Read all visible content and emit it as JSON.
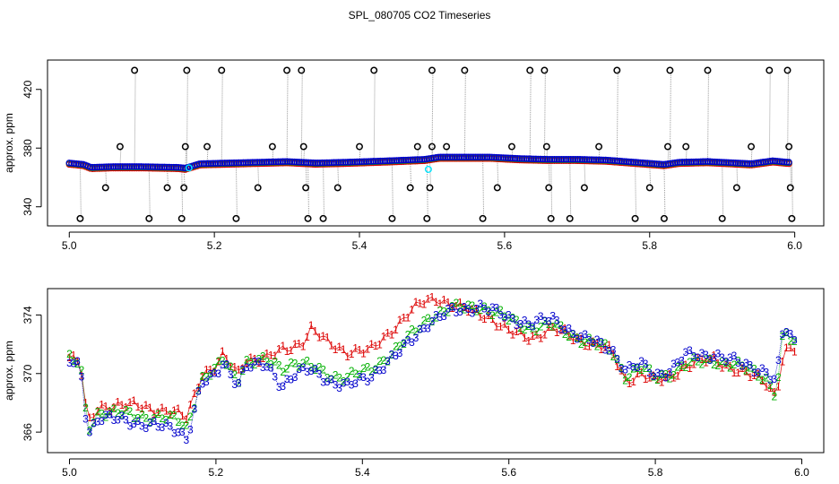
{
  "figure_title": "SPL_080705  CO2 Timeseries",
  "colors": {
    "series1": "#dd0000",
    "series2": "#00b000",
    "series3": "#0000cc",
    "raw_outlier": "#000000",
    "cyan": "#00e5ff",
    "frame": "#000000",
    "grey_line": "#9a9a9a"
  },
  "chart_data": [
    {
      "type": "scatter",
      "title": "",
      "xlabel": "",
      "ylabel": "approx. ppm",
      "xlim": [
        4.97,
        6.04
      ],
      "ylim": [
        327,
        440
      ],
      "xticks": [
        5.0,
        5.2,
        5.4,
        5.6,
        5.8,
        6.0
      ],
      "xtick_labels": [
        "5.0",
        "5.2",
        "5.4",
        "5.6",
        "5.8",
        "6.0"
      ],
      "yticks": [
        340,
        380,
        420
      ],
      "ytick_labels": [
        "340",
        "380",
        "420"
      ],
      "baseline_knots": [
        [
          5.0,
          369.5
        ],
        [
          5.02,
          368.5
        ],
        [
          5.03,
          366.5
        ],
        [
          5.06,
          367.0
        ],
        [
          5.1,
          367.0
        ],
        [
          5.15,
          366.5
        ],
        [
          5.16,
          366.0
        ],
        [
          5.18,
          369.0
        ],
        [
          5.22,
          369.5
        ],
        [
          5.3,
          370.5
        ],
        [
          5.34,
          369.5
        ],
        [
          5.38,
          370.0
        ],
        [
          5.44,
          371.0
        ],
        [
          5.49,
          372.0
        ],
        [
          5.51,
          373.5
        ],
        [
          5.58,
          373.5
        ],
        [
          5.62,
          372.5
        ],
        [
          5.66,
          372.0
        ],
        [
          5.7,
          372.0
        ],
        [
          5.74,
          371.5
        ],
        [
          5.78,
          370.0
        ],
        [
          5.82,
          368.5
        ],
        [
          5.84,
          370.0
        ],
        [
          5.88,
          370.5
        ],
        [
          5.94,
          369.0
        ],
        [
          5.97,
          371.0
        ],
        [
          5.99,
          370.0
        ]
      ],
      "outliers": [
        [
          5.015,
          332
        ],
        [
          5.05,
          353
        ],
        [
          5.07,
          381
        ],
        [
          5.09,
          433
        ],
        [
          5.11,
          332
        ],
        [
          5.135,
          353
        ],
        [
          5.155,
          332
        ],
        [
          5.158,
          353
        ],
        [
          5.16,
          381
        ],
        [
          5.162,
          433
        ],
        [
          5.19,
          381
        ],
        [
          5.21,
          433
        ],
        [
          5.23,
          332
        ],
        [
          5.26,
          353
        ],
        [
          5.28,
          381
        ],
        [
          5.3,
          433
        ],
        [
          5.32,
          433
        ],
        [
          5.323,
          381
        ],
        [
          5.326,
          353
        ],
        [
          5.329,
          332
        ],
        [
          5.35,
          332
        ],
        [
          5.37,
          353
        ],
        [
          5.4,
          381
        ],
        [
          5.42,
          433
        ],
        [
          5.445,
          332
        ],
        [
          5.47,
          353
        ],
        [
          5.48,
          381
        ],
        [
          5.493,
          332
        ],
        [
          5.497,
          353
        ],
        [
          5.5,
          381
        ],
        [
          5.5,
          433
        ],
        [
          5.52,
          381
        ],
        [
          5.545,
          433
        ],
        [
          5.57,
          332
        ],
        [
          5.59,
          353
        ],
        [
          5.61,
          381
        ],
        [
          5.635,
          433
        ],
        [
          5.655,
          433
        ],
        [
          5.658,
          381
        ],
        [
          5.661,
          353
        ],
        [
          5.664,
          332
        ],
        [
          5.69,
          332
        ],
        [
          5.71,
          353
        ],
        [
          5.73,
          381
        ],
        [
          5.755,
          433
        ],
        [
          5.78,
          332
        ],
        [
          5.8,
          353
        ],
        [
          5.82,
          332
        ],
        [
          5.825,
          381
        ],
        [
          5.828,
          433
        ],
        [
          5.85,
          381
        ],
        [
          5.88,
          433
        ],
        [
          5.9,
          332
        ],
        [
          5.92,
          353
        ],
        [
          5.94,
          381
        ],
        [
          5.965,
          433
        ],
        [
          5.99,
          433
        ],
        [
          5.992,
          381
        ],
        [
          5.994,
          353
        ],
        [
          5.996,
          332
        ]
      ],
      "cyan_points": [
        [
          5.165,
          366.5
        ],
        [
          5.495,
          365.5
        ]
      ]
    },
    {
      "type": "scatter",
      "title": "",
      "xlabel": "",
      "ylabel": "approx. ppm",
      "xlim": [
        4.97,
        6.03
      ],
      "ylim": [
        364.6,
        375.8
      ],
      "xticks": [
        5.0,
        5.2,
        5.4,
        5.6,
        5.8,
        6.0
      ],
      "xtick_labels": [
        "5.0",
        "5.2",
        "5.4",
        "5.6",
        "5.8",
        "6.0"
      ],
      "yticks": [
        366,
        370,
        374
      ],
      "ytick_labels": [
        "366",
        "370",
        "374"
      ],
      "point_labels": [
        "1",
        "2",
        "3"
      ],
      "series": [
        {
          "name": "1",
          "knots": [
            [
              5.0,
              371.1
            ],
            [
              5.015,
              370.6
            ],
            [
              5.025,
              366.5
            ],
            [
              5.04,
              367.8
            ],
            [
              5.1,
              367.8
            ],
            [
              5.15,
              367.2
            ],
            [
              5.16,
              367.0
            ],
            [
              5.18,
              370.0
            ],
            [
              5.2,
              370.4
            ],
            [
              5.21,
              371.2
            ],
            [
              5.23,
              370.0
            ],
            [
              5.24,
              371.0
            ],
            [
              5.27,
              371.0
            ],
            [
              5.29,
              371.6
            ],
            [
              5.32,
              372.2
            ],
            [
              5.33,
              373.0
            ],
            [
              5.35,
              372.2
            ],
            [
              5.38,
              371.5
            ],
            [
              5.41,
              371.5
            ],
            [
              5.44,
              373.0
            ],
            [
              5.48,
              374.8
            ],
            [
              5.5,
              375.2
            ],
            [
              5.53,
              374.5
            ],
            [
              5.57,
              374.0
            ],
            [
              5.6,
              372.8
            ],
            [
              5.63,
              372.5
            ],
            [
              5.66,
              373.0
            ],
            [
              5.7,
              372.3
            ],
            [
              5.74,
              371.5
            ],
            [
              5.76,
              369.5
            ],
            [
              5.78,
              370.0
            ],
            [
              5.8,
              369.4
            ],
            [
              5.82,
              369.8
            ],
            [
              5.84,
              370.5
            ],
            [
              5.88,
              371.0
            ],
            [
              5.92,
              370.0
            ],
            [
              5.95,
              369.5
            ],
            [
              5.965,
              368.5
            ],
            [
              5.975,
              371.5
            ],
            [
              5.99,
              371.6
            ]
          ]
        },
        {
          "name": "2",
          "knots": [
            [
              5.0,
              371.0
            ],
            [
              5.015,
              370.6
            ],
            [
              5.025,
              366.2
            ],
            [
              5.04,
              367.4
            ],
            [
              5.1,
              367.1
            ],
            [
              5.15,
              366.8
            ],
            [
              5.16,
              366.3
            ],
            [
              5.18,
              369.6
            ],
            [
              5.2,
              370.2
            ],
            [
              5.21,
              371.0
            ],
            [
              5.23,
              369.6
            ],
            [
              5.24,
              370.8
            ],
            [
              5.27,
              370.8
            ],
            [
              5.29,
              370.4
            ],
            [
              5.31,
              370.8
            ],
            [
              5.33,
              370.4
            ],
            [
              5.36,
              369.8
            ],
            [
              5.38,
              369.8
            ],
            [
              5.41,
              370.2
            ],
            [
              5.45,
              371.8
            ],
            [
              5.49,
              373.8
            ],
            [
              5.52,
              374.4
            ],
            [
              5.56,
              374.6
            ],
            [
              5.6,
              373.7
            ],
            [
              5.63,
              373.1
            ],
            [
              5.66,
              373.3
            ],
            [
              5.7,
              372.3
            ],
            [
              5.74,
              371.6
            ],
            [
              5.76,
              369.8
            ],
            [
              5.78,
              370.4
            ],
            [
              5.8,
              369.7
            ],
            [
              5.82,
              370.0
            ],
            [
              5.84,
              370.6
            ],
            [
              5.88,
              370.9
            ],
            [
              5.92,
              370.4
            ],
            [
              5.95,
              369.8
            ],
            [
              5.965,
              368.5
            ],
            [
              5.975,
              372.9
            ],
            [
              5.99,
              372.0
            ]
          ]
        },
        {
          "name": "3",
          "knots": [
            [
              5.0,
              370.8
            ],
            [
              5.015,
              370.5
            ],
            [
              5.025,
              365.9
            ],
            [
              5.04,
              367.0
            ],
            [
              5.1,
              366.6
            ],
            [
              5.15,
              366.1
            ],
            [
              5.16,
              365.6
            ],
            [
              5.18,
              369.3
            ],
            [
              5.2,
              369.8
            ],
            [
              5.21,
              370.8
            ],
            [
              5.23,
              369.3
            ],
            [
              5.24,
              370.5
            ],
            [
              5.27,
              370.5
            ],
            [
              5.29,
              369.2
            ],
            [
              5.31,
              370.0
            ],
            [
              5.33,
              370.2
            ],
            [
              5.36,
              369.4
            ],
            [
              5.38,
              369.1
            ],
            [
              5.41,
              369.8
            ],
            [
              5.45,
              371.4
            ],
            [
              5.49,
              373.5
            ],
            [
              5.52,
              374.2
            ],
            [
              5.56,
              374.6
            ],
            [
              5.6,
              373.8
            ],
            [
              5.63,
              373.4
            ],
            [
              5.66,
              373.7
            ],
            [
              5.7,
              372.4
            ],
            [
              5.74,
              371.7
            ],
            [
              5.76,
              370.2
            ],
            [
              5.78,
              370.6
            ],
            [
              5.8,
              369.9
            ],
            [
              5.82,
              370.2
            ],
            [
              5.84,
              371.2
            ],
            [
              5.88,
              371.3
            ],
            [
              5.92,
              370.6
            ],
            [
              5.95,
              370.2
            ],
            [
              5.965,
              369.4
            ],
            [
              5.975,
              373.2
            ],
            [
              5.99,
              372.1
            ]
          ]
        }
      ]
    }
  ]
}
